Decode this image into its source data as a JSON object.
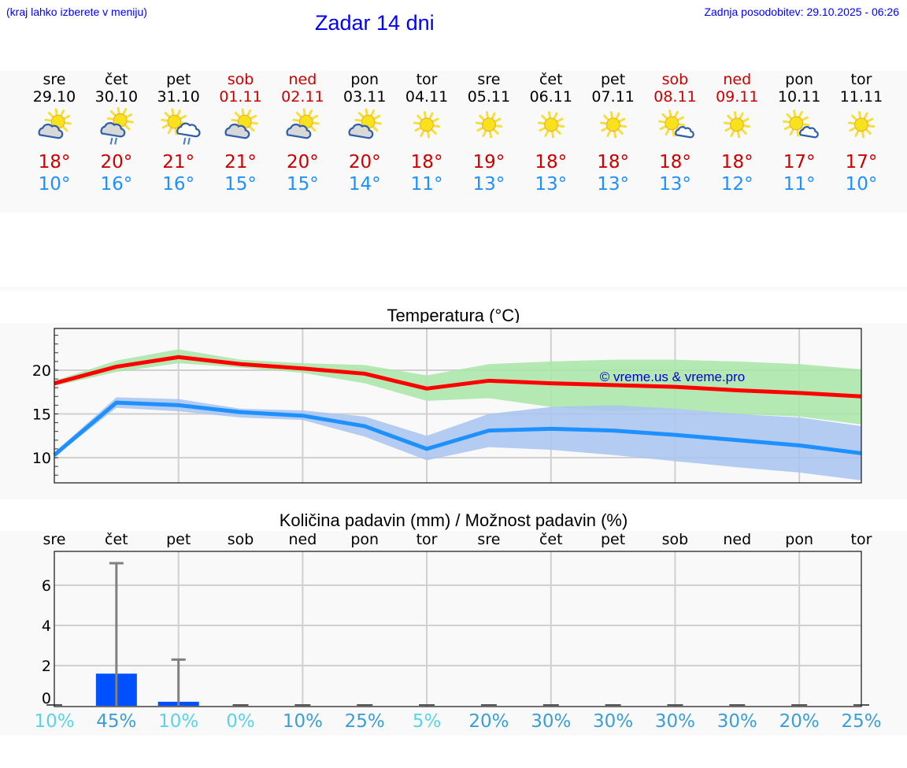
{
  "header": {
    "menu_hint": "(kraj lahko izberete v meniju)",
    "title": "Zadar 14 dni",
    "last_update": "Zadnja posodobitev: 29.10.2025 - 06:26"
  },
  "colors": {
    "header_text": "#0000ff",
    "weekend": "#cc0000",
    "tmax": "#cc0000",
    "tmin": "#1e90ff",
    "max_line": "#ff0000",
    "min_line": "#1e90ff",
    "max_band": "#a8e6a8",
    "min_band": "#a8c4f0",
    "precip_bar": "#0050ff",
    "precip_err": "#808080",
    "pct_low": "#5bd3e6",
    "pct_high": "#3a9fd6"
  },
  "forecast": {
    "days": [
      {
        "name": "sre",
        "date": "29.10",
        "weekend": false,
        "icon": "partly-cloudy-icon",
        "tmax": "18°",
        "tmin": "10°"
      },
      {
        "name": "čet",
        "date": "30.10",
        "weekend": false,
        "icon": "partly-cloudy-rain-icon",
        "tmax": "20°",
        "tmin": "16°"
      },
      {
        "name": "pet",
        "date": "31.10",
        "weekend": false,
        "icon": "sun-cloud-rain-icon",
        "tmax": "21°",
        "tmin": "16°"
      },
      {
        "name": "sob",
        "date": "01.11",
        "weekend": true,
        "icon": "partly-cloudy-icon",
        "tmax": "21°",
        "tmin": "15°"
      },
      {
        "name": "ned",
        "date": "02.11",
        "weekend": true,
        "icon": "partly-cloudy-icon",
        "tmax": "20°",
        "tmin": "15°"
      },
      {
        "name": "pon",
        "date": "03.11",
        "weekend": false,
        "icon": "partly-cloudy-icon",
        "tmax": "20°",
        "tmin": "14°"
      },
      {
        "name": "tor",
        "date": "04.11",
        "weekend": false,
        "icon": "sun-icon",
        "tmax": "18°",
        "tmin": "11°"
      },
      {
        "name": "sre",
        "date": "05.11",
        "weekend": false,
        "icon": "sun-icon",
        "tmax": "19°",
        "tmin": "13°"
      },
      {
        "name": "čet",
        "date": "06.11",
        "weekend": false,
        "icon": "sun-icon",
        "tmax": "18°",
        "tmin": "13°"
      },
      {
        "name": "pet",
        "date": "07.11",
        "weekend": false,
        "icon": "sun-icon",
        "tmax": "18°",
        "tmin": "13°"
      },
      {
        "name": "sob",
        "date": "08.11",
        "weekend": true,
        "icon": "sun-small-cloud-icon",
        "tmax": "18°",
        "tmin": "13°"
      },
      {
        "name": "ned",
        "date": "09.11",
        "weekend": true,
        "icon": "sun-icon",
        "tmax": "18°",
        "tmin": "12°"
      },
      {
        "name": "pon",
        "date": "10.11",
        "weekend": false,
        "icon": "sun-small-cloud-icon",
        "tmax": "17°",
        "tmin": "11°"
      },
      {
        "name": "tor",
        "date": "11.11",
        "weekend": false,
        "icon": "sun-icon",
        "tmax": "17°",
        "tmin": "10°"
      }
    ]
  },
  "temperature_chart": {
    "title": "Temperatura (°C)",
    "watermark": "© vreme.us & vreme.pro"
  },
  "precip_chart": {
    "title": "Količina padavin (mm) / Možnost padavin (%)"
  },
  "chart_data": [
    {
      "type": "line",
      "title": "Temperatura (°C)",
      "x": [
        "29.10",
        "30.10",
        "31.10",
        "01.11",
        "02.11",
        "03.11",
        "04.11",
        "05.11",
        "06.11",
        "07.11",
        "08.11",
        "09.11",
        "10.11",
        "11.11"
      ],
      "ylim": [
        7,
        25
      ],
      "yticks": [
        10,
        15,
        20
      ],
      "grid": true,
      "series": [
        {
          "name": "max",
          "color": "#ff0000",
          "values": [
            18.5,
            20.4,
            21.5,
            20.7,
            20.2,
            19.6,
            17.9,
            18.8,
            18.5,
            18.3,
            18.1,
            17.7,
            17.4,
            17.0
          ]
        },
        {
          "name": "max_band_upper",
          "values": [
            18.8,
            21.1,
            22.4,
            21.2,
            20.8,
            20.6,
            19.4,
            20.7,
            21.0,
            21.2,
            21.2,
            21.0,
            20.7,
            20.1
          ]
        },
        {
          "name": "max_band_lower",
          "values": [
            18.2,
            19.8,
            20.8,
            20.3,
            19.7,
            18.5,
            16.5,
            16.8,
            15.8,
            15.3,
            15.5,
            15.0,
            14.7,
            13.8
          ]
        },
        {
          "name": "min",
          "color": "#1e90ff",
          "values": [
            10.3,
            16.3,
            16.0,
            15.2,
            14.8,
            13.6,
            11.0,
            13.1,
            13.3,
            13.1,
            12.6,
            12.0,
            11.4,
            10.5
          ]
        },
        {
          "name": "min_band_upper",
          "values": [
            10.6,
            16.9,
            16.7,
            15.6,
            15.4,
            14.7,
            12.5,
            15.0,
            15.8,
            16.0,
            15.6,
            15.0,
            14.6,
            13.6
          ]
        },
        {
          "name": "min_band_lower",
          "values": [
            10.1,
            15.7,
            15.3,
            14.6,
            14.3,
            12.4,
            9.7,
            11.2,
            10.9,
            10.3,
            9.6,
            8.9,
            8.3,
            7.4
          ]
        }
      ]
    },
    {
      "type": "bar",
      "title": "Količina padavin (mm) / Možnost padavin (%)",
      "categories": [
        "sre",
        "čet",
        "pet",
        "sob",
        "ned",
        "pon",
        "tor",
        "sre",
        "čet",
        "pet",
        "sob",
        "ned",
        "pon",
        "tor"
      ],
      "ylim": [
        0,
        7.7
      ],
      "yticks": [
        0,
        2,
        4,
        6
      ],
      "grid": true,
      "series": [
        {
          "name": "precip_mm",
          "values": [
            0,
            1.6,
            0.2,
            0,
            0,
            0,
            0,
            0,
            0,
            0,
            0,
            0,
            0,
            0
          ]
        },
        {
          "name": "precip_max_mm",
          "values": [
            0,
            7.1,
            2.3,
            0,
            0,
            0,
            0,
            0,
            0,
            0,
            0,
            0,
            0,
            0
          ]
        },
        {
          "name": "chance_pct",
          "values": [
            10,
            45,
            10,
            0,
            10,
            25,
            5,
            20,
            30,
            30,
            30,
            30,
            20,
            25
          ]
        }
      ],
      "pct_labels": [
        "10%",
        "45%",
        "10%",
        "0%",
        "10%",
        "25%",
        "5%",
        "20%",
        "30%",
        "30%",
        "30%",
        "30%",
        "20%",
        "25%"
      ]
    }
  ]
}
